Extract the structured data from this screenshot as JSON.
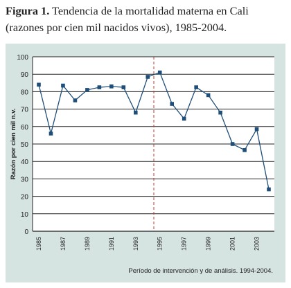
{
  "caption": {
    "label": "Figura 1.",
    "text": " Tendencia de la mortalidad materna en Cali (razones por cien mil nacidos vivos), 1985-2004."
  },
  "chart_data": {
    "type": "line",
    "title": "",
    "xlabel": "",
    "ylabel": "Razón por cien mil n.v.",
    "ylim": [
      0,
      100
    ],
    "yticks": [
      0,
      10,
      20,
      30,
      40,
      50,
      60,
      70,
      80,
      90,
      100
    ],
    "xlim": [
      1985,
      2004
    ],
    "xticks": [
      "1985",
      "1987",
      "1989",
      "1991",
      "1993",
      "1995",
      "1997",
      "1999",
      "2001",
      "2003"
    ],
    "grid": "horizontal",
    "series": [
      {
        "x": [
          1985,
          1986,
          1987,
          1988,
          1989,
          1990,
          1991,
          1992,
          1993,
          1994,
          1995,
          1996,
          1997,
          1998,
          1999,
          2000,
          2001,
          2002,
          2003,
          2004
        ],
        "values": [
          84,
          56,
          83.5,
          75,
          81,
          82.5,
          83,
          82.5,
          68,
          88.5,
          91,
          73,
          64.5,
          82.5,
          78,
          68,
          50,
          46.5,
          58.5,
          24
        ],
        "color": "#1f4e79"
      }
    ],
    "intervention_line": {
      "x": 1994.5,
      "color": "#c0392b"
    },
    "note": "Período de intervención y de análisis. 1994-2004."
  }
}
